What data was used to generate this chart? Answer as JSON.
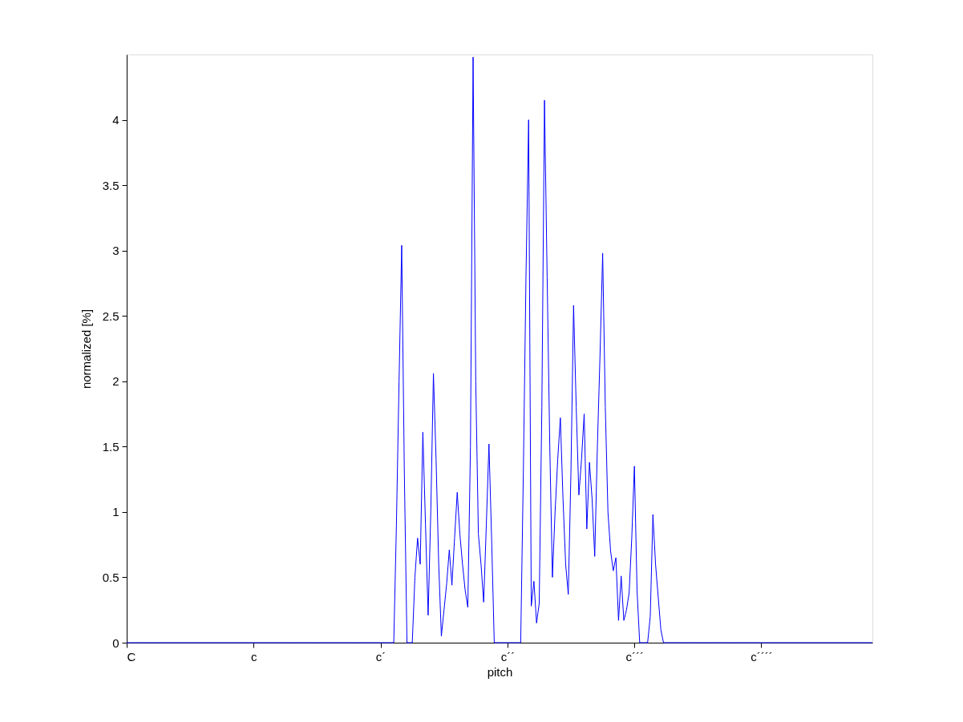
{
  "chart_data": {
    "type": "line",
    "xlabel": "pitch",
    "ylabel": "normalized [%]",
    "ylim": [
      0,
      4.5
    ],
    "yticks": [
      {
        "value": 0,
        "label": "0"
      },
      0.5,
      {
        "value": 1,
        "label": "1"
      },
      1.5,
      {
        "value": 2,
        "label": "2"
      },
      2.5,
      {
        "value": 3,
        "label": "3"
      },
      3.5,
      {
        "value": 4,
        "label": "4"
      }
    ],
    "grid": false,
    "legend": false,
    "marker": "none",
    "line_style": "solid",
    "categories": [
      "C",
      null,
      null,
      null,
      null,
      null,
      null,
      null,
      null,
      null,
      null,
      null,
      null,
      null,
      null,
      null,
      null,
      null,
      null,
      null,
      null,
      null,
      null,
      null,
      null,
      null,
      null,
      null,
      null,
      null,
      null,
      null,
      null,
      null,
      null,
      null,
      null,
      null,
      null,
      null,
      null,
      null,
      null,
      null,
      null,
      null,
      null,
      null,
      "c",
      null,
      null,
      null,
      null,
      null,
      null,
      null,
      null,
      null,
      null,
      null,
      null,
      null,
      null,
      null,
      null,
      null,
      null,
      null,
      null,
      null,
      null,
      null,
      null,
      null,
      null,
      null,
      null,
      null,
      null,
      null,
      null,
      null,
      null,
      null,
      null,
      null,
      null,
      null,
      null,
      null,
      null,
      null,
      null,
      null,
      null,
      null,
      "c´",
      null,
      null,
      null,
      null,
      null,
      null,
      null,
      null,
      null,
      null,
      null,
      null,
      null,
      null,
      null,
      null,
      null,
      null,
      null,
      null,
      null,
      null,
      null,
      null,
      null,
      null,
      null,
      null,
      null,
      null,
      null,
      null,
      null,
      null,
      null,
      null,
      null,
      null,
      null,
      null,
      null,
      null,
      null,
      null,
      null,
      null,
      null,
      "c´´",
      null,
      null,
      null,
      null,
      null,
      null,
      null,
      null,
      null,
      null,
      null,
      null,
      null,
      null,
      null,
      null,
      null,
      null,
      null,
      null,
      null,
      null,
      null,
      null,
      null,
      null,
      null,
      null,
      null,
      null,
      null,
      null,
      null,
      null,
      null,
      null,
      null,
      null,
      null,
      null,
      null,
      null,
      null,
      null,
      null,
      null,
      null,
      "c´´´",
      null,
      null,
      null,
      null,
      null,
      null,
      null,
      null,
      null,
      null,
      null,
      null,
      null,
      null,
      null,
      null,
      null,
      null,
      null,
      null,
      null,
      null,
      null,
      null,
      null,
      null,
      null,
      null,
      null,
      null,
      null,
      null,
      null,
      null,
      null,
      null,
      null,
      null,
      null,
      null,
      null,
      null,
      null,
      null,
      null,
      null,
      null,
      "c´´´´",
      null,
      null,
      null,
      null,
      null,
      null,
      null,
      null,
      null,
      null,
      null,
      null,
      null,
      null,
      null,
      null,
      null,
      null,
      null,
      null,
      null,
      null,
      null,
      null,
      null,
      null,
      null,
      null,
      null,
      null,
      null,
      null,
      null,
      null,
      null,
      null,
      null,
      null,
      null,
      null,
      null,
      null
    ],
    "series": [
      {
        "color": "#0000ff",
        "values": [
          0,
          0,
          0,
          0,
          0,
          0,
          0,
          0,
          0,
          0,
          0,
          0,
          0,
          0,
          0,
          0,
          0,
          0,
          0,
          0,
          0,
          0,
          0,
          0,
          0,
          0,
          0,
          0,
          0,
          0,
          0,
          0,
          0,
          0,
          0,
          0,
          0,
          0,
          0,
          0,
          0,
          0,
          0,
          0,
          0,
          0,
          0,
          0,
          0,
          0,
          0,
          0,
          0,
          0,
          0,
          0,
          0,
          0,
          0,
          0,
          0,
          0,
          0,
          0,
          0,
          0,
          0,
          0,
          0,
          0,
          0,
          0,
          0,
          0,
          0,
          0,
          0,
          0,
          0,
          0,
          0,
          0,
          0,
          0,
          0,
          0,
          0,
          0,
          0,
          0,
          0,
          0,
          0,
          0,
          0,
          0,
          0,
          0,
          0,
          0,
          0,
          0,
          0.9,
          2.0,
          3.04,
          1.3,
          0,
          0,
          0,
          0.5,
          0.8,
          0.6,
          1.61,
          0.9,
          0.21,
          1.0,
          2.06,
          1.4,
          0.6,
          0.05,
          0.25,
          0.45,
          0.71,
          0.44,
          0.8,
          1.15,
          0.83,
          0.6,
          0.4,
          0.27,
          1.5,
          4.48,
          2.0,
          0.83,
          0.6,
          0.31,
          0.9,
          1.52,
          0.8,
          0,
          0,
          0,
          0,
          0,
          0,
          0,
          0,
          0,
          0,
          0,
          1.3,
          2.8,
          4.0,
          0.28,
          0.47,
          0.15,
          0.3,
          1.8,
          4.15,
          2.8,
          1.5,
          0.5,
          1.0,
          1.4,
          1.72,
          1.1,
          0.6,
          0.37,
          1.3,
          2.58,
          1.8,
          1.13,
          1.4,
          1.75,
          0.87,
          1.38,
          1.1,
          0.66,
          1.5,
          2.2,
          2.98,
          1.8,
          1.0,
          0.7,
          0.55,
          0.65,
          0.17,
          0.51,
          0.17,
          0.25,
          0.38,
          0.8,
          1.35,
          0.4,
          0,
          0,
          0,
          0,
          0.2,
          0.98,
          0.6,
          0.35,
          0.1,
          0,
          0,
          0,
          0,
          0,
          0,
          0,
          0,
          0,
          0,
          0,
          0,
          0,
          0,
          0,
          0,
          0,
          0,
          0,
          0,
          0,
          0,
          0,
          0,
          0,
          0,
          0,
          0,
          0,
          0,
          0,
          0,
          0,
          0,
          0,
          0,
          0,
          0,
          0,
          0,
          0,
          0,
          0,
          0,
          0,
          0,
          0,
          0,
          0,
          0,
          0,
          0,
          0,
          0,
          0,
          0,
          0,
          0,
          0,
          0,
          0,
          0,
          0,
          0,
          0,
          0,
          0,
          0,
          0,
          0,
          0,
          0,
          0,
          0,
          0,
          0,
          0,
          0,
          0,
          0
        ]
      }
    ]
  }
}
